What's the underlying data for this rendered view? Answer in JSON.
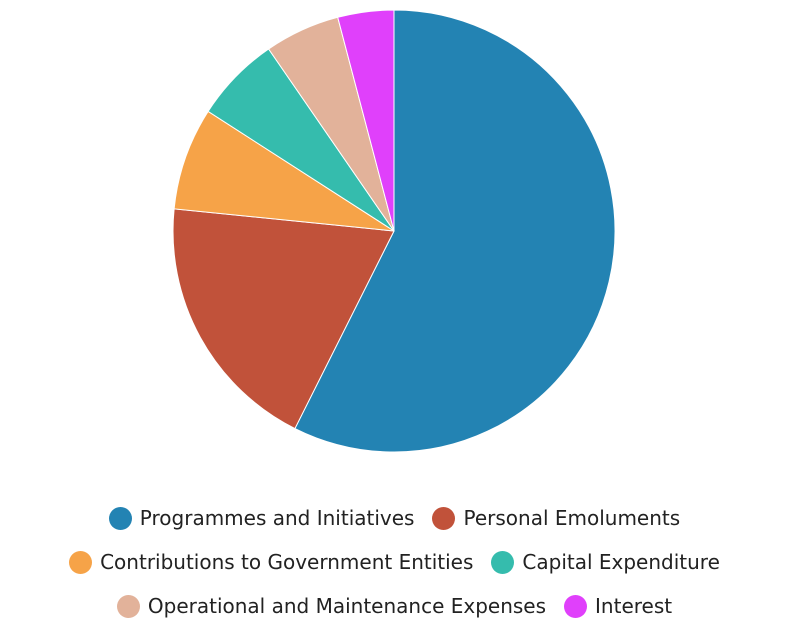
{
  "chart_data": {
    "type": "pie",
    "start_angle": "12 o'clock",
    "direction": "clockwise",
    "slices": [
      {
        "label": "Programmes and Initiatives",
        "value": 57.4,
        "color": "#2383b3"
      },
      {
        "label": "Personal Emoluments",
        "value": 19.2,
        "color": "#c1523a"
      },
      {
        "label": "Contributions to Government Entities",
        "value": 7.5,
        "color": "#f6a348"
      },
      {
        "label": "Capital Expenditure",
        "value": 6.3,
        "color": "#35bcad"
      },
      {
        "label": "Operational and Maintenance Expenses",
        "value": 5.5,
        "color": "#e2b29a"
      },
      {
        "label": "Interest",
        "value": 4.1,
        "color": "#e040fb"
      }
    ],
    "legend_position": "bottom"
  }
}
